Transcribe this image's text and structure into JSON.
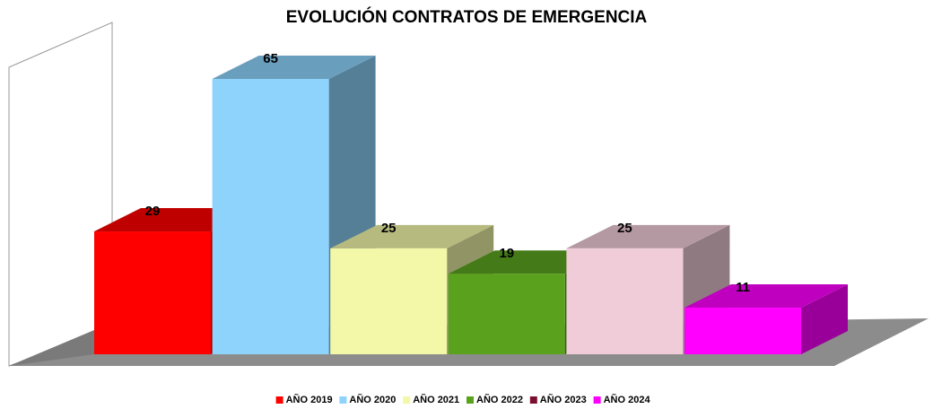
{
  "chart_data": {
    "type": "bar3d",
    "title": "EVOLUCIÓN CONTRATOS DE EMERGENCIA",
    "series": [
      {
        "name": "AÑO 2019",
        "color": "#ff0000",
        "legend_color": "#ff0000",
        "values": [
          29
        ]
      },
      {
        "name": "AÑO 2020",
        "color": "#8dd3fc",
        "legend_color": "#8dd3fc",
        "values": [
          65
        ]
      },
      {
        "name": "AÑO 2021",
        "color": "#f2f8a8",
        "legend_color": "#f2f8a8",
        "values": [
          25
        ]
      },
      {
        "name": "AÑO 2022",
        "color": "#5aa21e",
        "legend_color": "#5aa21e",
        "values": [
          19
        ]
      },
      {
        "name": "AÑO 2023",
        "color": "#f0ccd8",
        "legend_color": "#7a1030",
        "values": [
          25
        ]
      },
      {
        "name": "AÑO 2024",
        "color": "#ff00ff",
        "legend_color": "#ff00ff",
        "values": [
          11
        ]
      }
    ],
    "legend": "bottom"
  }
}
